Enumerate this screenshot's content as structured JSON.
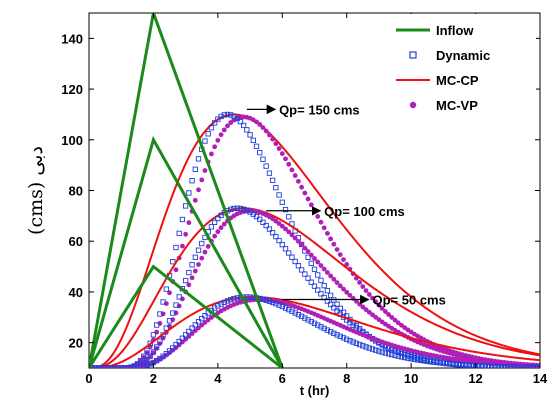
{
  "chart_data": {
    "type": "line",
    "xlabel": "t (hr)",
    "ylabel": "(cms) دبی",
    "xlim": [
      0,
      14
    ],
    "ylim": [
      10,
      150
    ],
    "xticks": [
      "0",
      "2",
      "4",
      "6",
      "8",
      "10",
      "12",
      "14"
    ],
    "yticks": [
      "20",
      "40",
      "60",
      "80",
      "100",
      "120",
      "140"
    ],
    "grid": false,
    "legend_placement": "top-right",
    "colors": {
      "inflow": "#1a8a1a",
      "dynamic": "#1f3fd8",
      "mc_cp": "#ee1111",
      "mc_vp": "#b020b8"
    },
    "legend": [
      {
        "key": "inflow",
        "label": "Inflow",
        "marker": "line"
      },
      {
        "key": "dynamic",
        "label": "Dynamic",
        "marker": "square"
      },
      {
        "key": "mc_cp",
        "label": "MC-CP",
        "marker": "line"
      },
      {
        "key": "mc_vp",
        "label": "MC-VP",
        "marker": "dot"
      }
    ],
    "inflow": [
      {
        "name": "Qp= 150 cms",
        "x": [
          0,
          2,
          6
        ],
        "y": [
          10,
          150,
          10
        ]
      },
      {
        "name": "Qp= 100 cms",
        "x": [
          0,
          2,
          6
        ],
        "y": [
          10,
          100,
          10
        ]
      },
      {
        "name": "Qp= 50 cms",
        "x": [
          0,
          2,
          6
        ],
        "y": [
          10,
          50,
          10
        ]
      }
    ],
    "outflow": [
      {
        "label": "Qp= 150 cms",
        "peak": 110,
        "tp_dynamic": 4.3,
        "tp_mccp": 4.5,
        "tp_mcvp": 4.8,
        "arrow_from": [
          4.9,
          112
        ],
        "text_at": [
          5.9,
          112
        ]
      },
      {
        "label": "Qp= 100 cms",
        "peak": 73,
        "tp_dynamic": 4.6,
        "tp_mccp": 4.8,
        "tp_mcvp": 5.0,
        "arrow_from": [
          5.5,
          72
        ],
        "text_at": [
          7.3,
          72
        ]
      },
      {
        "label": "Qp= 50 cms",
        "peak": 38,
        "tp_dynamic": 4.9,
        "tp_mccp": 5.1,
        "tp_mcvp": 5.3,
        "arrow_from": [
          6.0,
          37
        ],
        "text_at": [
          8.8,
          37
        ]
      }
    ],
    "baseflow": 10
  }
}
